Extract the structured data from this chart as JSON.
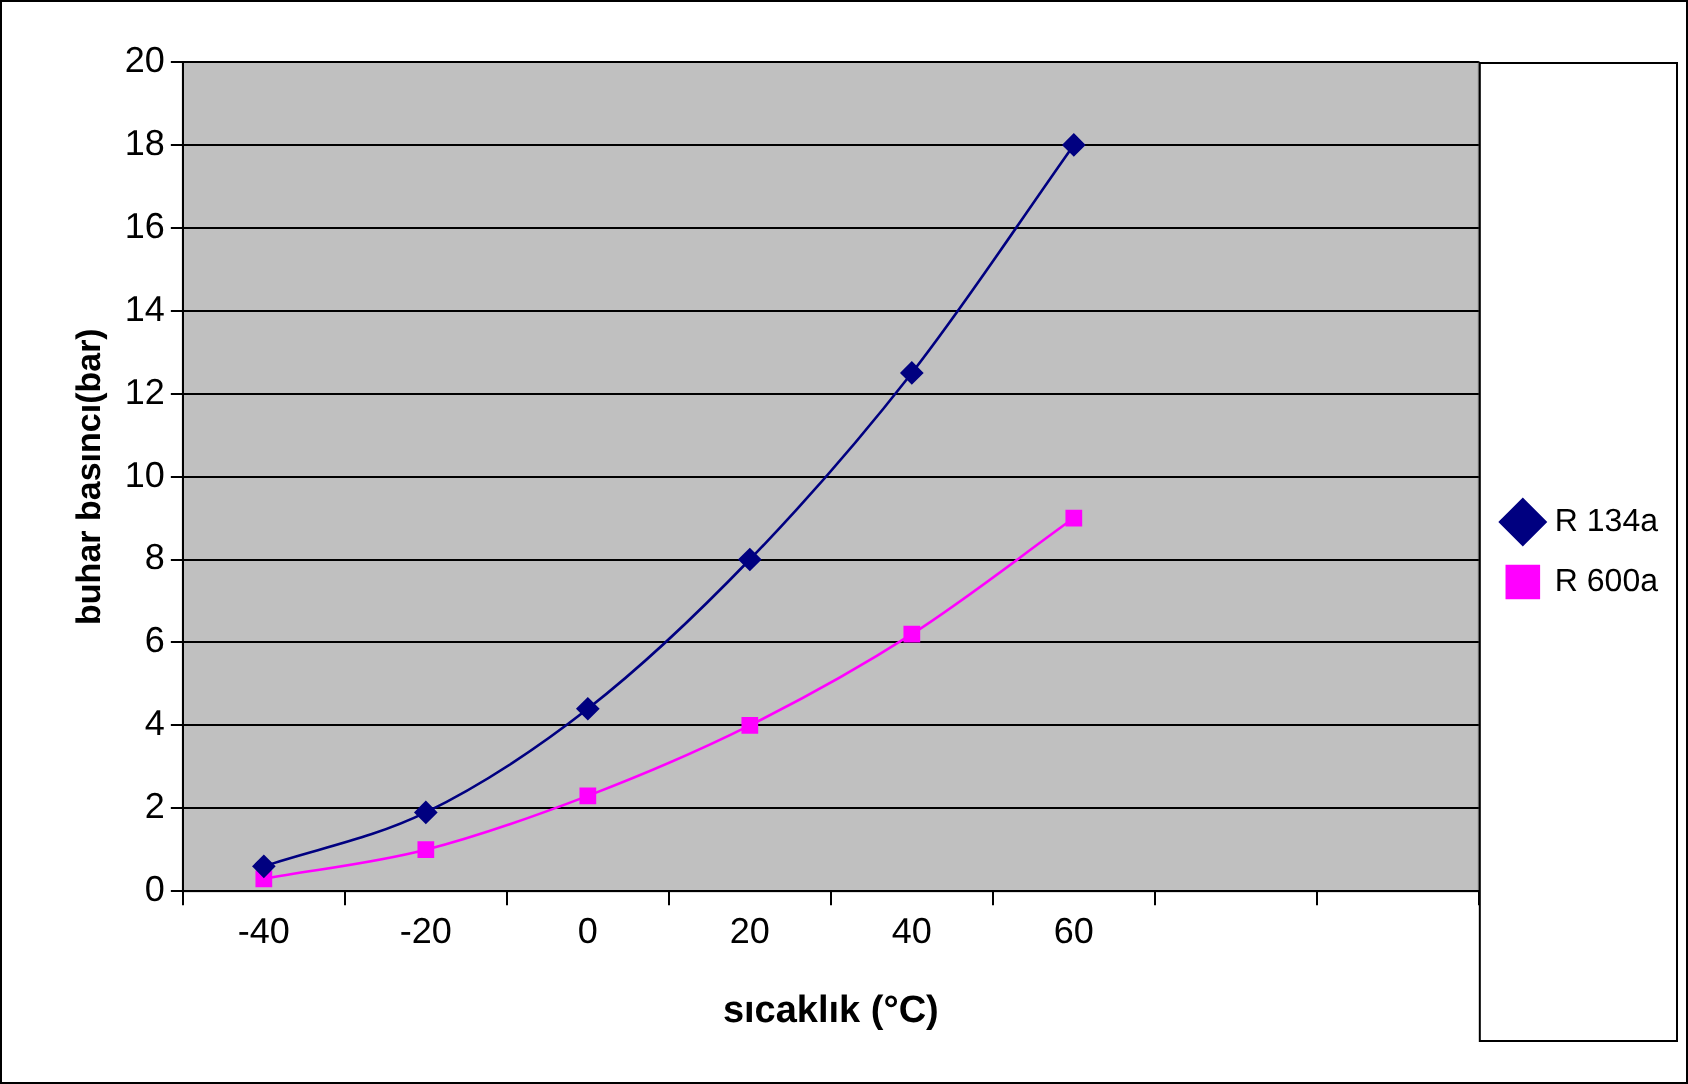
{
  "chart_data": {
    "type": "line",
    "xlabel": "sıcaklık (°C)",
    "ylabel": "buhar basıncı(bar)",
    "categories": [
      "-40",
      "-20",
      "0",
      "20",
      "40",
      "60",
      null,
      null
    ],
    "series": [
      {
        "name": "R 134a",
        "color": "#000080",
        "marker": "diamond",
        "values": [
          0.6,
          1.9,
          4.4,
          8.0,
          12.5,
          18.0,
          null,
          null
        ]
      },
      {
        "name": "R 600a",
        "color": "#ff00ff",
        "marker": "square",
        "values": [
          0.3,
          1.0,
          2.3,
          4.0,
          6.2,
          9.0,
          null,
          null
        ]
      }
    ],
    "ylim": [
      0,
      20
    ],
    "yticks": [
      0,
      2,
      4,
      6,
      8,
      10,
      12,
      14,
      16,
      18,
      20
    ],
    "grid": "y",
    "legend": "right",
    "line_style": "solid"
  }
}
